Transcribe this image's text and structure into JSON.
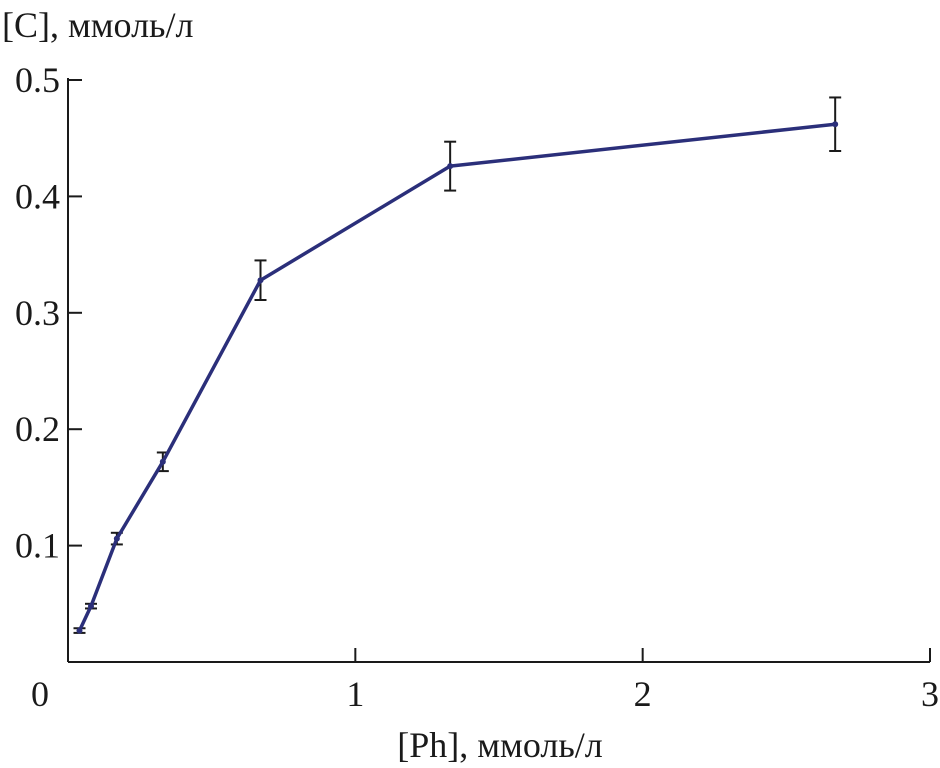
{
  "chart_data": {
    "type": "line",
    "ylabel": "[C], ммоль/л",
    "xlabel": "[Ph], ммоль/л",
    "xlim": [
      0,
      3
    ],
    "ylim": [
      0,
      0.5
    ],
    "x_ticks": [
      "0",
      "1",
      "2",
      "3"
    ],
    "y_ticks": [
      "0.1",
      "0.2",
      "0.3",
      "0.4",
      "0.5"
    ],
    "grid": false,
    "series": [
      {
        "color": "#2b2f7a",
        "points": [
          {
            "x": 0.04,
            "y": 0.027,
            "err": 0.002
          },
          {
            "x": 0.08,
            "y": 0.048,
            "err": 0.002
          },
          {
            "x": 0.17,
            "y": 0.106,
            "err": 0.005
          },
          {
            "x": 0.33,
            "y": 0.172,
            "err": 0.008
          },
          {
            "x": 0.67,
            "y": 0.328,
            "err": 0.017
          },
          {
            "x": 1.33,
            "y": 0.426,
            "err": 0.021
          },
          {
            "x": 2.67,
            "y": 0.462,
            "err": 0.023
          }
        ]
      }
    ]
  }
}
